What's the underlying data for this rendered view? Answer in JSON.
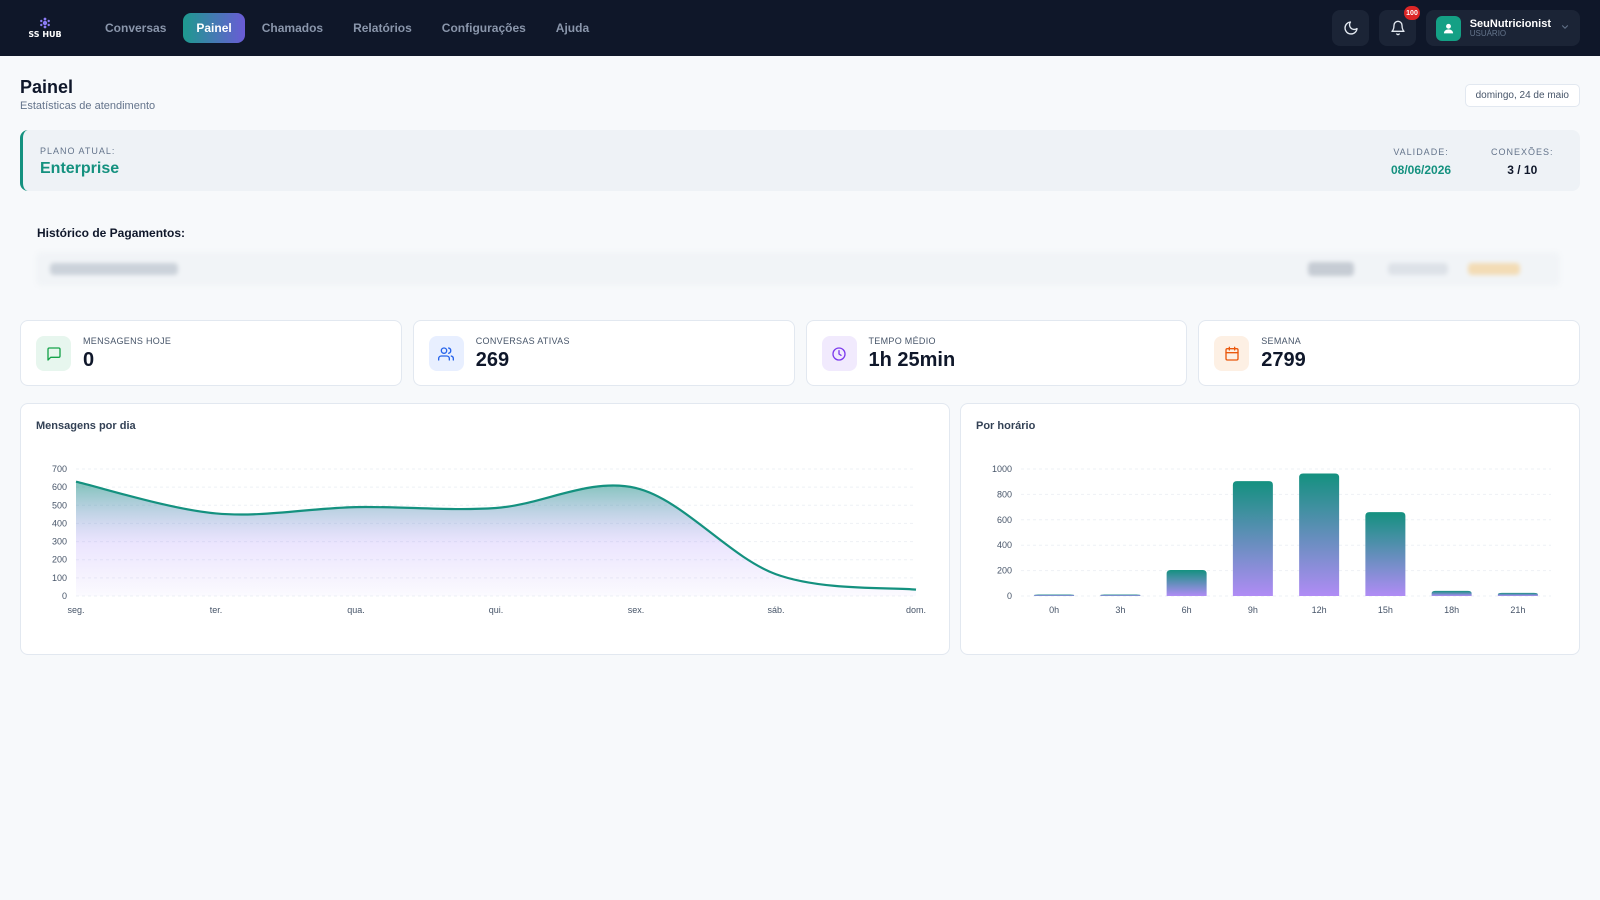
{
  "nav": {
    "logo_text": "SS HUB",
    "items": [
      {
        "label": "Conversas",
        "active": false
      },
      {
        "label": "Painel",
        "active": true
      },
      {
        "label": "Chamados",
        "active": false
      },
      {
        "label": "Relatórios",
        "active": false
      },
      {
        "label": "Configurações",
        "active": false
      },
      {
        "label": "Ajuda",
        "active": false
      }
    ],
    "notification_count": "100",
    "user": {
      "name": "SeuNutricionist",
      "role": "USUÁRIO"
    }
  },
  "header": {
    "title": "Painel",
    "subtitle": "Estatísticas de atendimento",
    "date": "domingo, 24 de maio"
  },
  "plan": {
    "label": "PLANO ATUAL:",
    "name": "Enterprise",
    "validade_label": "VALIDADE:",
    "validade_value": "08/06/2026",
    "conexoes_label": "CONEXÕES:",
    "conexoes_value": "3 / 10"
  },
  "payments": {
    "title": "Histórico de Pagamentos:"
  },
  "stats": [
    {
      "label": "MENSAGENS HOJE",
      "value": "0",
      "icon": "message-icon",
      "color": "#16a34a"
    },
    {
      "label": "CONVERSAS ATIVAS",
      "value": "269",
      "icon": "users-icon",
      "color": "#2563eb"
    },
    {
      "label": "TEMPO MÉDIO",
      "value": "1h 25min",
      "icon": "clock-icon",
      "color": "#7c3aed"
    },
    {
      "label": "SEMANA",
      "value": "2799",
      "icon": "calendar-icon",
      "color": "#ea580c"
    }
  ],
  "charts": {
    "daily_title": "Mensagens por dia",
    "hourly_title": "Por horário"
  },
  "colors": {
    "nav_bg": "#0f1729",
    "accent_teal": "#14917f",
    "accent_purple": "#a78bfa"
  },
  "chart_data": [
    {
      "type": "area",
      "title": "Mensagens por dia",
      "categories": [
        "seg.",
        "ter.",
        "qua.",
        "qui.",
        "sex.",
        "sáb.",
        "dom."
      ],
      "values": [
        630,
        455,
        490,
        485,
        595,
        120,
        35
      ],
      "ylim": [
        0,
        700
      ],
      "yticks": [
        0,
        100,
        200,
        300,
        400,
        500,
        600,
        700
      ],
      "grid": true
    },
    {
      "type": "bar",
      "title": "Por horário",
      "categories": [
        "0h",
        "3h",
        "6h",
        "9h",
        "12h",
        "15h",
        "18h",
        "21h"
      ],
      "values": [
        5,
        5,
        205,
        905,
        965,
        660,
        40,
        25
      ],
      "ylim": [
        0,
        1000
      ],
      "yticks": [
        0,
        200,
        400,
        600,
        800,
        1000
      ],
      "grid": true
    }
  ]
}
